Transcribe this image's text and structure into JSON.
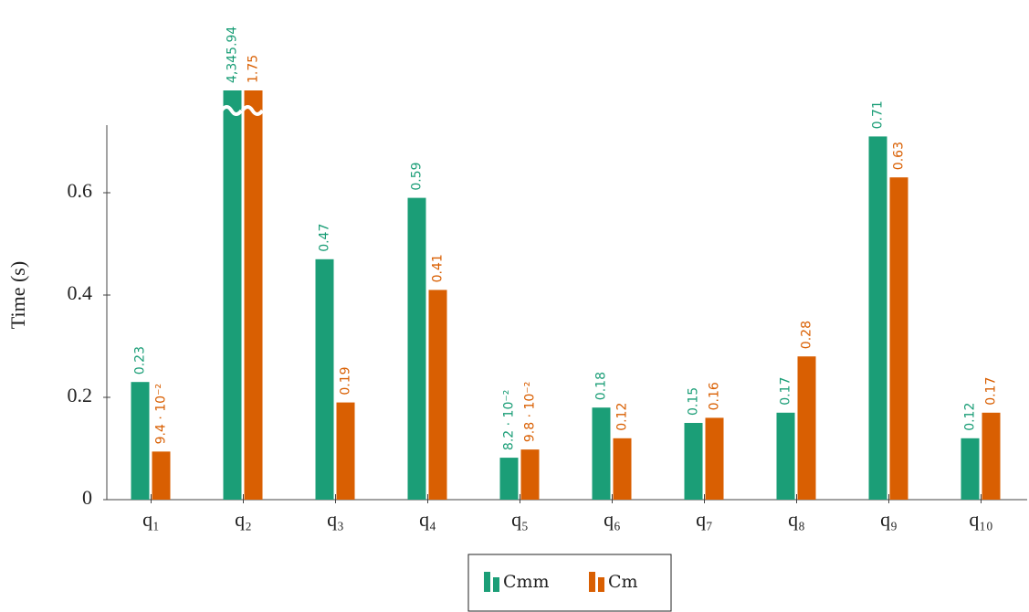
{
  "chart_data": {
    "type": "bar",
    "y_label": "Time (s)",
    "categories": [
      "q₁",
      "q₂",
      "q₃",
      "q₄",
      "q₅",
      "q₆",
      "q₇",
      "q₈",
      "q₉",
      "q₁₀"
    ],
    "series": [
      {
        "name": "Cmm",
        "color": "#1b9e77",
        "values": [
          0.23,
          4345.94,
          0.47,
          0.59,
          0.082,
          0.18,
          0.15,
          0.17,
          0.71,
          0.12
        ],
        "value_labels": [
          "0.23",
          "4,345.94",
          "0.47",
          "0.59",
          "8.2 · 10⁻²",
          "0.18",
          "0.15",
          "0.17",
          "0.71",
          "0.12"
        ]
      },
      {
        "name": "Cm",
        "color": "#d95f02",
        "values": [
          0.094,
          1.75,
          0.19,
          0.41,
          0.098,
          0.12,
          0.16,
          0.28,
          0.63,
          0.17
        ],
        "value_labels": [
          "9.4 · 10⁻²",
          "1.75",
          "0.19",
          "0.41",
          "9.8 · 10⁻²",
          "0.12",
          "0.16",
          "0.28",
          "0.63",
          "0.17"
        ]
      }
    ],
    "ylim": [
      0,
      0.8
    ],
    "yticks": [
      0,
      0.2,
      0.4,
      0.6
    ]
  }
}
